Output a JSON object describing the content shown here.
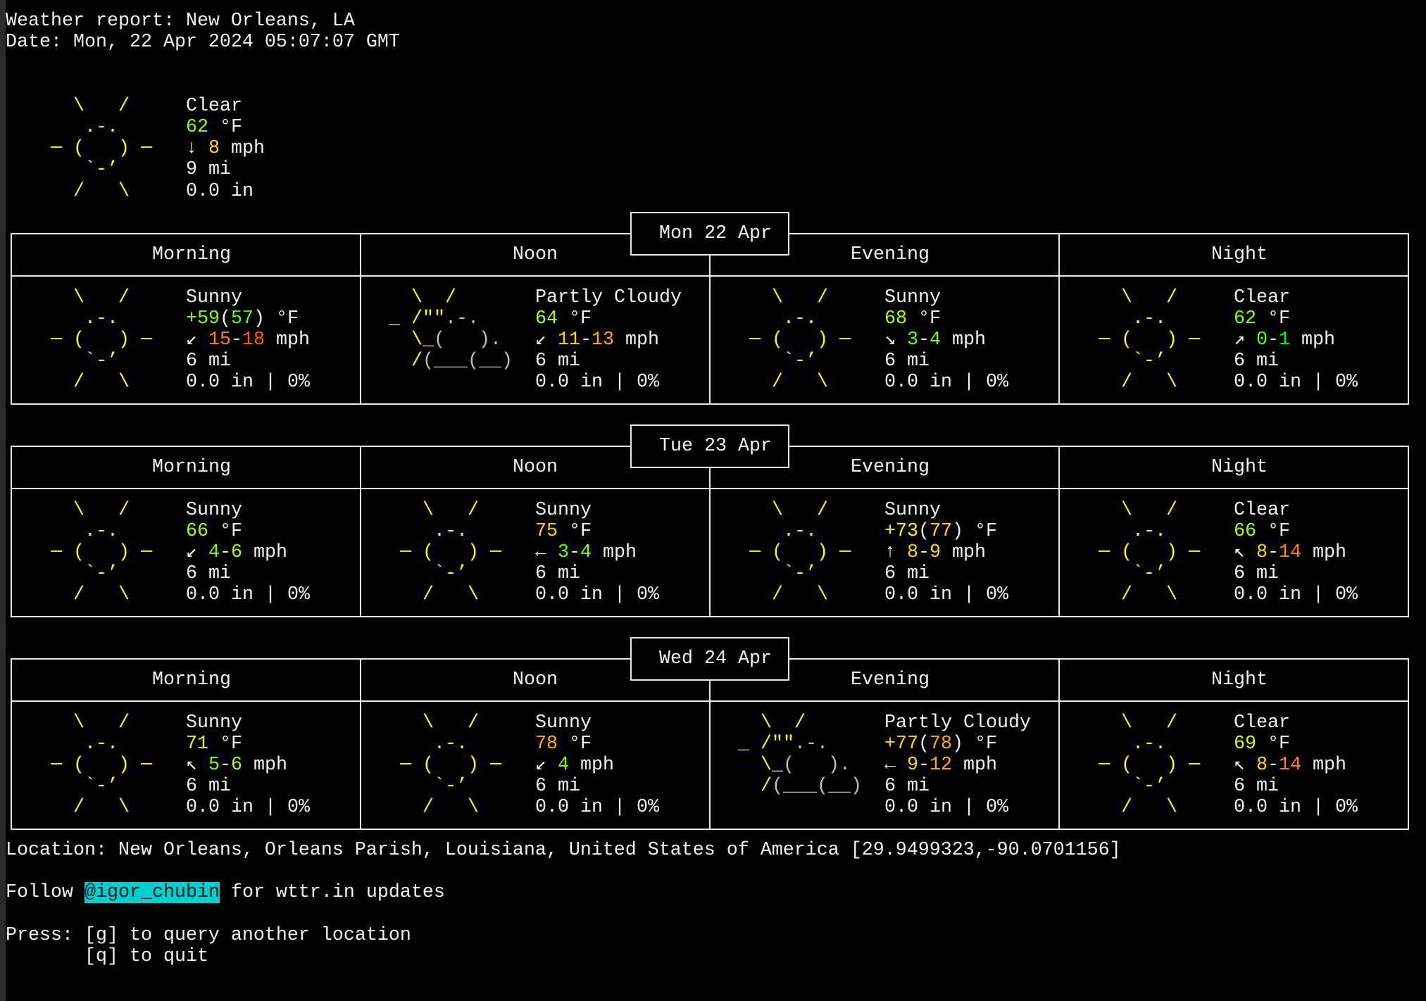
{
  "header": {
    "title": "Weather report: New Orleans, LA",
    "date": "Date: Mon, 22 Apr 2024 05:07:07 GMT"
  },
  "colors": {
    "sun": "#ffff00",
    "cloud": "#c0c0c0",
    "text": "#f2f2f2",
    "border": "#e8e8e8",
    "link_bg": "#00cfcf"
  },
  "icons": {
    "sunny": [
      [
        {
          "text": "    \\   /",
          "color": "#ffff00"
        }
      ],
      [
        {
          "text": "     .-.",
          "color": "#ffff00"
        }
      ],
      [
        {
          "text": "  ─ (   ) ─",
          "color": "#ffff00"
        }
      ],
      [
        {
          "text": "     `-’",
          "color": "#ffff00"
        }
      ],
      [
        {
          "text": "    /   \\",
          "color": "#ffff00"
        }
      ]
    ],
    "partly_cloudy": [
      [
        {
          "text": "   \\  /",
          "color": "#ffff00"
        }
      ],
      [
        {
          "text": " _ /\"\"",
          "color": "#ffff00"
        },
        {
          "text": ".-.",
          "color": "#c0c0c0"
        }
      ],
      [
        {
          "text": "   \\_",
          "color": "#ffff00"
        },
        {
          "text": "(   ).",
          "color": "#c0c0c0"
        }
      ],
      [
        {
          "text": "   /",
          "color": "#ffff00"
        },
        {
          "text": "(___(__)",
          "color": "#c0c0c0"
        }
      ],
      [
        {
          "text": "",
          "color": "#c0c0c0"
        }
      ]
    ]
  },
  "current": {
    "icon": "sunny",
    "condition": "Clear",
    "temperature": [
      {
        "text": "62",
        "color": "#87ff00"
      },
      {
        "text": " °F"
      }
    ],
    "wind": [
      {
        "text": "↓ "
      },
      {
        "text": "8",
        "color": "#ffd700"
      },
      {
        "text": " mph"
      }
    ],
    "visibility": "9 mi",
    "precipitation": "0.0 in"
  },
  "days": [
    {
      "date": "Mon 22 Apr",
      "periods": [
        {
          "name": "Morning",
          "icon": "sunny",
          "condition": "Sunny",
          "temperature": [
            {
              "text": "+59",
              "color": "#87ff00"
            },
            {
              "text": "("
            },
            {
              "text": "57",
              "color": "#5fff00"
            },
            {
              "text": ") °F"
            }
          ],
          "wind": [
            {
              "text": "↙ "
            },
            {
              "text": "15",
              "color": "#ff8700"
            },
            {
              "text": "-"
            },
            {
              "text": "18",
              "color": "#ff5f00"
            },
            {
              "text": " mph"
            }
          ],
          "visibility": "6 mi",
          "precipitation": "0.0 in | 0%"
        },
        {
          "name": "Noon",
          "icon": "partly_cloudy",
          "condition": "Partly Cloudy",
          "temperature": [
            {
              "text": "64",
              "color": "#afff00"
            },
            {
              "text": " °F"
            }
          ],
          "wind": [
            {
              "text": "↙ "
            },
            {
              "text": "11",
              "color": "#ffd700"
            },
            {
              "text": "-"
            },
            {
              "text": "13",
              "color": "#ffaf00"
            },
            {
              "text": " mph"
            }
          ],
          "visibility": "6 mi",
          "precipitation": "0.0 in | 0%"
        },
        {
          "name": "Evening",
          "icon": "sunny",
          "condition": "Sunny",
          "temperature": [
            {
              "text": "68",
              "color": "#afff00"
            },
            {
              "text": " °F"
            }
          ],
          "wind": [
            {
              "text": "↘ "
            },
            {
              "text": "3",
              "color": "#5fff00"
            },
            {
              "text": "-"
            },
            {
              "text": "4",
              "color": "#87ff00"
            },
            {
              "text": " mph"
            }
          ],
          "visibility": "6 mi",
          "precipitation": "0.0 in | 0%"
        },
        {
          "name": "Night",
          "icon": "sunny",
          "condition": "Clear",
          "temperature": [
            {
              "text": "62",
              "color": "#87ff00"
            },
            {
              "text": " °F"
            }
          ],
          "wind": [
            {
              "text": "↗ "
            },
            {
              "text": "0",
              "color": "#5fff00"
            },
            {
              "text": "-"
            },
            {
              "text": "1",
              "color": "#00ff00"
            },
            {
              "text": " mph"
            }
          ],
          "visibility": "6 mi",
          "precipitation": "0.0 in | 0%"
        }
      ]
    },
    {
      "date": "Tue 23 Apr",
      "periods": [
        {
          "name": "Morning",
          "icon": "sunny",
          "condition": "Sunny",
          "temperature": [
            {
              "text": "66",
              "color": "#afff00"
            },
            {
              "text": " °F"
            }
          ],
          "wind": [
            {
              "text": "↙ "
            },
            {
              "text": "4",
              "color": "#87ff00"
            },
            {
              "text": "-"
            },
            {
              "text": "6",
              "color": "#afff00"
            },
            {
              "text": " mph"
            }
          ],
          "visibility": "6 mi",
          "precipitation": "0.0 in | 0%"
        },
        {
          "name": "Noon",
          "icon": "sunny",
          "condition": "Sunny",
          "temperature": [
            {
              "text": "75",
              "color": "#ffd700"
            },
            {
              "text": " °F"
            }
          ],
          "wind": [
            {
              "text": "← "
            },
            {
              "text": "3",
              "color": "#5fff00"
            },
            {
              "text": "-"
            },
            {
              "text": "4",
              "color": "#87ff00"
            },
            {
              "text": " mph"
            }
          ],
          "visibility": "6 mi",
          "precipitation": "0.0 in | 0%"
        },
        {
          "name": "Evening",
          "icon": "sunny",
          "condition": "Sunny",
          "temperature": [
            {
              "text": "+73",
              "color": "#ffff00"
            },
            {
              "text": "("
            },
            {
              "text": "77",
              "color": "#ffd700"
            },
            {
              "text": ") °F"
            }
          ],
          "wind": [
            {
              "text": "↑ "
            },
            {
              "text": "8",
              "color": "#ffd700"
            },
            {
              "text": "-"
            },
            {
              "text": "9",
              "color": "#ffd700"
            },
            {
              "text": " mph"
            }
          ],
          "visibility": "6 mi",
          "precipitation": "0.0 in | 0%"
        },
        {
          "name": "Night",
          "icon": "sunny",
          "condition": "Clear",
          "temperature": [
            {
              "text": "66",
              "color": "#afff00"
            },
            {
              "text": " °F"
            }
          ],
          "wind": [
            {
              "text": "↖ "
            },
            {
              "text": "8",
              "color": "#ffd700"
            },
            {
              "text": "-"
            },
            {
              "text": "14",
              "color": "#ff8700"
            },
            {
              "text": " mph"
            }
          ],
          "visibility": "6 mi",
          "precipitation": "0.0 in | 0%"
        }
      ]
    },
    {
      "date": "Wed 24 Apr",
      "periods": [
        {
          "name": "Morning",
          "icon": "sunny",
          "condition": "Sunny",
          "temperature": [
            {
              "text": "71",
              "color": "#d7ff00"
            },
            {
              "text": " °F"
            }
          ],
          "wind": [
            {
              "text": "↖ "
            },
            {
              "text": "5",
              "color": "#87ff00"
            },
            {
              "text": "-"
            },
            {
              "text": "6",
              "color": "#afff00"
            },
            {
              "text": " mph"
            }
          ],
          "visibility": "6 mi",
          "precipitation": "0.0 in | 0%"
        },
        {
          "name": "Noon",
          "icon": "sunny",
          "condition": "Sunny",
          "temperature": [
            {
              "text": "78",
              "color": "#ffaf00"
            },
            {
              "text": " °F"
            }
          ],
          "wind": [
            {
              "text": "↙ "
            },
            {
              "text": "4",
              "color": "#87ff00"
            },
            {
              "text": " mph"
            }
          ],
          "visibility": "6 mi",
          "precipitation": "0.0 in | 0%"
        },
        {
          "name": "Evening",
          "icon": "partly_cloudy",
          "condition": "Partly Cloudy",
          "temperature": [
            {
              "text": "+77",
              "color": "#ffd700"
            },
            {
              "text": "("
            },
            {
              "text": "78",
              "color": "#ffaf00"
            },
            {
              "text": ") °F"
            }
          ],
          "wind": [
            {
              "text": "← "
            },
            {
              "text": "9",
              "color": "#ffd700"
            },
            {
              "text": "-"
            },
            {
              "text": "12",
              "color": "#ffaf00"
            },
            {
              "text": " mph"
            }
          ],
          "visibility": "6 mi",
          "precipitation": "0.0 in | 0%"
        },
        {
          "name": "Night",
          "icon": "sunny",
          "condition": "Clear",
          "temperature": [
            {
              "text": "69",
              "color": "#d7ff00"
            },
            {
              "text": " °F"
            }
          ],
          "wind": [
            {
              "text": "↖ "
            },
            {
              "text": "8",
              "color": "#ffd700"
            },
            {
              "text": "-"
            },
            {
              "text": "14",
              "color": "#ff8700"
            },
            {
              "text": " mph"
            }
          ],
          "visibility": "6 mi",
          "precipitation": "0.0 in | 0%"
        }
      ]
    }
  ],
  "footer": {
    "location": "Location: New Orleans, Orleans Parish, Louisiana, United States of America [29.9499323,-90.0701156]",
    "follow_prefix": "Follow ",
    "follow_handle": "@igor_chubin",
    "follow_suffix": " for wttr.in updates",
    "press_line1": "Press: [g] to query another location",
    "press_line2": "       [q] to quit"
  }
}
